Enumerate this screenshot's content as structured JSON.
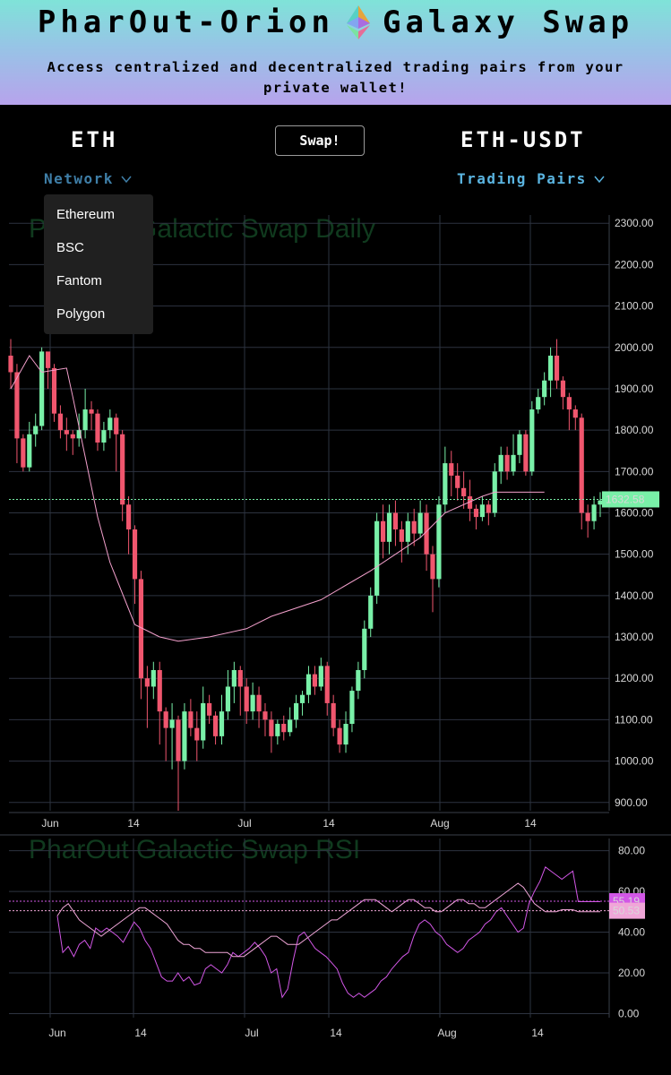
{
  "header": {
    "title_left": "PharOut-Orion",
    "title_right": "Galaxy Swap",
    "subtitle": "Access centralized and decentralized trading pairs from your private wallet!"
  },
  "controls": {
    "base_coin": "ETH",
    "swap_label": "Swap!",
    "pair": "ETH-USDT",
    "network_label": "Network",
    "pairs_label": "Trading Pairs",
    "network_options": [
      "Ethereum",
      "BSC",
      "Fantom",
      "Polygon"
    ]
  },
  "colors": {
    "up": "#79f0a8",
    "down": "#f0566e",
    "ma": "#f3a0cc",
    "rsi": "#d257e6",
    "accent": "#5ab4e0"
  },
  "chart_data": [
    {
      "type": "candlestick",
      "title": "PharOut Galactic Swap Daily",
      "x_ticks": [
        "Jun",
        "14",
        "Jul",
        "14",
        "Aug",
        "14"
      ],
      "ylim": [
        880,
        2320
      ],
      "y_ticks": [
        "900.00",
        "1000.00",
        "1100.00",
        "1200.00",
        "1300.00",
        "1400.00",
        "1500.00",
        "1600.00",
        "1700.00",
        "1800.00",
        "1900.00",
        "2000.00",
        "2100.00",
        "2200.00",
        "2300.00"
      ],
      "last_price": "1632.58",
      "candles": [
        [
          1980,
          1940,
          2020,
          1900
        ],
        [
          1940,
          1780,
          1960,
          1720
        ],
        [
          1780,
          1710,
          1790,
          1700
        ],
        [
          1710,
          1790,
          1820,
          1700
        ],
        [
          1790,
          1810,
          1840,
          1760
        ],
        [
          1810,
          1990,
          2000,
          1800
        ],
        [
          1990,
          1950,
          1980,
          1900
        ],
        [
          1950,
          1840,
          1960,
          1820
        ],
        [
          1840,
          1800,
          1860,
          1780
        ],
        [
          1800,
          1790,
          1830,
          1750
        ],
        [
          1790,
          1780,
          1800,
          1740
        ],
        [
          1780,
          1800,
          1840,
          1760
        ],
        [
          1800,
          1850,
          1900,
          1780
        ],
        [
          1850,
          1840,
          1870,
          1800
        ],
        [
          1840,
          1770,
          1850,
          1750
        ],
        [
          1770,
          1800,
          1820,
          1750
        ],
        [
          1800,
          1830,
          1850,
          1780
        ],
        [
          1830,
          1790,
          1840,
          1700
        ],
        [
          1790,
          1620,
          1800,
          1580
        ],
        [
          1620,
          1560,
          1640,
          1500
        ],
        [
          1560,
          1440,
          1570,
          1380
        ],
        [
          1440,
          1200,
          1460,
          1150
        ],
        [
          1200,
          1180,
          1230,
          1080
        ],
        [
          1180,
          1220,
          1240,
          1150
        ],
        [
          1220,
          1120,
          1240,
          1040
        ],
        [
          1120,
          1080,
          1130,
          1000
        ],
        [
          1080,
          1100,
          1140,
          980
        ],
        [
          1100,
          1000,
          1110,
          880
        ],
        [
          1000,
          1120,
          1140,
          980
        ],
        [
          1120,
          1080,
          1150,
          1060
        ],
        [
          1080,
          1050,
          1120,
          1000
        ],
        [
          1050,
          1140,
          1180,
          1030
        ],
        [
          1140,
          1110,
          1160,
          1090
        ],
        [
          1110,
          1060,
          1120,
          1040
        ],
        [
          1060,
          1120,
          1160,
          1040
        ],
        [
          1120,
          1180,
          1220,
          1100
        ],
        [
          1180,
          1220,
          1240,
          1140
        ],
        [
          1220,
          1180,
          1230,
          1110
        ],
        [
          1180,
          1120,
          1200,
          1090
        ],
        [
          1120,
          1160,
          1190,
          1100
        ],
        [
          1160,
          1120,
          1180,
          1080
        ],
        [
          1120,
          1100,
          1140,
          1060
        ],
        [
          1100,
          1060,
          1120,
          1020
        ],
        [
          1060,
          1090,
          1100,
          1040
        ],
        [
          1090,
          1070,
          1110,
          1050
        ],
        [
          1070,
          1100,
          1130,
          1060
        ],
        [
          1100,
          1140,
          1160,
          1080
        ],
        [
          1140,
          1160,
          1170,
          1110
        ],
        [
          1160,
          1210,
          1230,
          1140
        ],
        [
          1210,
          1180,
          1230,
          1160
        ],
        [
          1180,
          1230,
          1250,
          1170
        ],
        [
          1230,
          1140,
          1240,
          1110
        ],
        [
          1140,
          1080,
          1160,
          1060
        ],
        [
          1080,
          1040,
          1100,
          1020
        ],
        [
          1040,
          1090,
          1120,
          1020
        ],
        [
          1090,
          1170,
          1180,
          1070
        ],
        [
          1170,
          1220,
          1240,
          1150
        ],
        [
          1220,
          1320,
          1340,
          1200
        ],
        [
          1320,
          1400,
          1420,
          1300
        ],
        [
          1400,
          1580,
          1600,
          1380
        ],
        [
          1580,
          1530,
          1620,
          1490
        ],
        [
          1530,
          1600,
          1620,
          1500
        ],
        [
          1600,
          1560,
          1630,
          1520
        ],
        [
          1560,
          1530,
          1580,
          1480
        ],
        [
          1530,
          1580,
          1600,
          1500
        ],
        [
          1580,
          1550,
          1610,
          1520
        ],
        [
          1550,
          1600,
          1630,
          1540
        ],
        [
          1600,
          1500,
          1620,
          1460
        ],
        [
          1500,
          1440,
          1520,
          1360
        ],
        [
          1440,
          1620,
          1640,
          1420
        ],
        [
          1620,
          1720,
          1760,
          1600
        ],
        [
          1720,
          1690,
          1750,
          1640
        ],
        [
          1690,
          1660,
          1720,
          1630
        ],
        [
          1660,
          1640,
          1700,
          1610
        ],
        [
          1640,
          1610,
          1680,
          1580
        ],
        [
          1610,
          1590,
          1620,
          1560
        ],
        [
          1590,
          1620,
          1640,
          1580
        ],
        [
          1620,
          1600,
          1630,
          1570
        ],
        [
          1600,
          1700,
          1720,
          1590
        ],
        [
          1700,
          1740,
          1760,
          1670
        ],
        [
          1740,
          1700,
          1760,
          1680
        ],
        [
          1700,
          1740,
          1790,
          1690
        ],
        [
          1740,
          1790,
          1800,
          1720
        ],
        [
          1790,
          1700,
          1800,
          1690
        ],
        [
          1700,
          1850,
          1870,
          1690
        ],
        [
          1850,
          1880,
          1900,
          1840
        ],
        [
          1880,
          1920,
          1940,
          1860
        ],
        [
          1920,
          1980,
          2000,
          1880
        ],
        [
          1980,
          1920,
          2020,
          1900
        ],
        [
          1920,
          1880,
          1930,
          1850
        ],
        [
          1880,
          1850,
          1890,
          1800
        ],
        [
          1850,
          1830,
          1860,
          1800
        ],
        [
          1830,
          1600,
          1840,
          1560
        ],
        [
          1600,
          1580,
          1620,
          1540
        ],
        [
          1580,
          1620,
          1640,
          1560
        ],
        [
          1620,
          1630,
          1650,
          1590
        ]
      ],
      "moving_average": [
        [
          0,
          1900
        ],
        [
          3,
          1980
        ],
        [
          5,
          1940
        ],
        [
          9,
          1950
        ],
        [
          10,
          1880
        ],
        [
          14,
          1590
        ],
        [
          16,
          1480
        ],
        [
          20,
          1330
        ],
        [
          24,
          1300
        ],
        [
          27,
          1290
        ],
        [
          32,
          1300
        ],
        [
          38,
          1320
        ],
        [
          42,
          1350
        ],
        [
          50,
          1390
        ],
        [
          58,
          1460
        ],
        [
          66,
          1540
        ],
        [
          70,
          1600
        ],
        [
          76,
          1640
        ],
        [
          78,
          1650
        ],
        [
          86,
          1650
        ]
      ]
    },
    {
      "type": "line",
      "title": "PharOut Galactic Swap RSI",
      "x_ticks": [
        "Jun",
        "14",
        "Jul",
        "14",
        "Aug",
        "14"
      ],
      "ylim": [
        -2,
        86
      ],
      "y_ticks": [
        "0.00",
        "20.00",
        "40.00",
        "60.00",
        "80.00"
      ],
      "last_values": [
        "55.19",
        "50.53"
      ],
      "series": [
        {
          "values": [
            48,
            30,
            33,
            28,
            34,
            36,
            32,
            42,
            40,
            42,
            40,
            38,
            35,
            40,
            45,
            42,
            36,
            32,
            25,
            18,
            16,
            16,
            20,
            16,
            18,
            14,
            15,
            22,
            24,
            22,
            20,
            24,
            30,
            28,
            30,
            32,
            35,
            32,
            28,
            20,
            22,
            8,
            12,
            26,
            38,
            40,
            36,
            32,
            30,
            28,
            25,
            22,
            15,
            10,
            8,
            10,
            8,
            10,
            12,
            16,
            18,
            22,
            25,
            28,
            30,
            38,
            44,
            46,
            44,
            40,
            38,
            34,
            32,
            30,
            32,
            36,
            38,
            40,
            44,
            46,
            50,
            52,
            48,
            44,
            40,
            42,
            54,
            60,
            65,
            72,
            70,
            68,
            66,
            68,
            70,
            55,
            55,
            55,
            55,
            55
          ],
          "name": ""
        },
        {
          "values": [
            48,
            52,
            54,
            50,
            46,
            44,
            42,
            40,
            38,
            40,
            42,
            44,
            46,
            48,
            50,
            52,
            52,
            50,
            48,
            46,
            44,
            40,
            36,
            34,
            34,
            32,
            32,
            30,
            30,
            30,
            30,
            30,
            28,
            28,
            28,
            30,
            32,
            34,
            36,
            38,
            38,
            36,
            34,
            34,
            34,
            36,
            38,
            40,
            42,
            44,
            46,
            46,
            48,
            50,
            52,
            54,
            56,
            56,
            56,
            54,
            52,
            50,
            52,
            54,
            56,
            56,
            54,
            52,
            52,
            50,
            50,
            52,
            54,
            56,
            56,
            54,
            54,
            52,
            52,
            54,
            56,
            58,
            60,
            62,
            64,
            62,
            58,
            54,
            52,
            50,
            50,
            50,
            51,
            51,
            51,
            50,
            50,
            50,
            50,
            50
          ],
          "name": ""
        }
      ]
    }
  ]
}
